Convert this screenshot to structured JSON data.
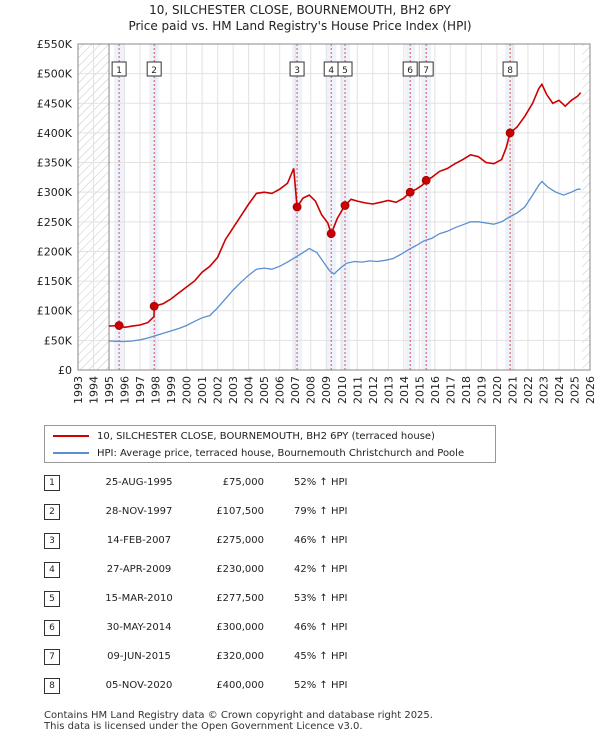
{
  "chart_data": {
    "type": "line",
    "title": "10, SILCHESTER CLOSE, BOURNEMOUTH, BH2 6PY",
    "subtitle": "Price paid vs. HM Land Registry's House Price Index (HPI)",
    "xlim": [
      1993,
      2026
    ],
    "ylim": [
      0,
      550000
    ],
    "x_ticks": [
      1993,
      1994,
      1995,
      1996,
      1997,
      1998,
      1999,
      2000,
      2001,
      2002,
      2003,
      2004,
      2005,
      2006,
      2007,
      2008,
      2009,
      2010,
      2011,
      2012,
      2013,
      2014,
      2015,
      2016,
      2017,
      2018,
      2019,
      2020,
      2021,
      2022,
      2023,
      2024,
      2025,
      2026
    ],
    "y_ticks": [
      {
        "value": 0,
        "label": "£0"
      },
      {
        "value": 50000,
        "label": "£50K"
      },
      {
        "value": 100000,
        "label": "£100K"
      },
      {
        "value": 150000,
        "label": "£150K"
      },
      {
        "value": 200000,
        "label": "£200K"
      },
      {
        "value": 250000,
        "label": "£250K"
      },
      {
        "value": 300000,
        "label": "£300K"
      },
      {
        "value": 350000,
        "label": "£350K"
      },
      {
        "value": 400000,
        "label": "£400K"
      },
      {
        "value": 450000,
        "label": "£450K"
      },
      {
        "value": 500000,
        "label": "£500K"
      },
      {
        "value": 550000,
        "label": "£550K"
      }
    ],
    "hatched_ranges": [
      [
        1993,
        1995.0
      ],
      [
        2025.5,
        2026
      ]
    ],
    "series": [
      {
        "name": "10, SILCHESTER CLOSE, BOURNEMOUTH, BH2 6PY (terraced house)",
        "color": "#cc0000",
        "points": [
          [
            1995.0,
            74000
          ],
          [
            1995.65,
            75000
          ],
          [
            1996.0,
            72000
          ],
          [
            1996.5,
            74000
          ],
          [
            1997.0,
            76000
          ],
          [
            1997.5,
            80000
          ],
          [
            1997.9,
            90000
          ],
          [
            1997.91,
            107500
          ],
          [
            1998.5,
            112000
          ],
          [
            1999.0,
            120000
          ],
          [
            1999.5,
            130000
          ],
          [
            2000.0,
            140000
          ],
          [
            2000.5,
            150000
          ],
          [
            2001.0,
            165000
          ],
          [
            2001.5,
            175000
          ],
          [
            2002.0,
            190000
          ],
          [
            2002.5,
            220000
          ],
          [
            2003.0,
            240000
          ],
          [
            2003.5,
            260000
          ],
          [
            2004.0,
            280000
          ],
          [
            2004.5,
            298000
          ],
          [
            2005.0,
            300000
          ],
          [
            2005.5,
            298000
          ],
          [
            2006.0,
            305000
          ],
          [
            2006.5,
            315000
          ],
          [
            2006.9,
            340000
          ],
          [
            2007.12,
            275000
          ],
          [
            2007.5,
            290000
          ],
          [
            2007.9,
            295000
          ],
          [
            2008.3,
            285000
          ],
          [
            2008.7,
            262000
          ],
          [
            2009.1,
            248000
          ],
          [
            2009.32,
            230000
          ],
          [
            2009.7,
            255000
          ],
          [
            2010.2,
            278000
          ],
          [
            2010.21,
            277500
          ],
          [
            2010.6,
            288000
          ],
          [
            2011.0,
            285000
          ],
          [
            2011.5,
            282000
          ],
          [
            2012.0,
            280000
          ],
          [
            2012.5,
            283000
          ],
          [
            2013.0,
            286000
          ],
          [
            2013.5,
            283000
          ],
          [
            2014.0,
            290000
          ],
          [
            2014.41,
            300000
          ],
          [
            2014.8,
            305000
          ],
          [
            2015.2,
            312000
          ],
          [
            2015.44,
            320000
          ],
          [
            2015.8,
            325000
          ],
          [
            2016.3,
            335000
          ],
          [
            2016.8,
            340000
          ],
          [
            2017.3,
            348000
          ],
          [
            2017.8,
            355000
          ],
          [
            2018.3,
            363000
          ],
          [
            2018.8,
            360000
          ],
          [
            2019.3,
            350000
          ],
          [
            2019.8,
            348000
          ],
          [
            2020.3,
            355000
          ],
          [
            2020.6,
            375000
          ],
          [
            2020.85,
            400000
          ],
          [
            2021.3,
            410000
          ],
          [
            2021.8,
            428000
          ],
          [
            2022.3,
            450000
          ],
          [
            2022.7,
            475000
          ],
          [
            2022.9,
            482000
          ],
          [
            2023.2,
            465000
          ],
          [
            2023.6,
            450000
          ],
          [
            2024.0,
            455000
          ],
          [
            2024.4,
            445000
          ],
          [
            2024.8,
            455000
          ],
          [
            2025.2,
            462000
          ],
          [
            2025.4,
            468000
          ]
        ]
      },
      {
        "name": "HPI: Average price, terraced house, Bournemouth Christchurch and Poole",
        "color": "#5b8fd0",
        "points": [
          [
            1995.0,
            49000
          ],
          [
            1995.5,
            48500
          ],
          [
            1996.0,
            48000
          ],
          [
            1996.5,
            49000
          ],
          [
            1997.0,
            51000
          ],
          [
            1997.5,
            54000
          ],
          [
            1998.0,
            58000
          ],
          [
            1998.5,
            62000
          ],
          [
            1999.0,
            66000
          ],
          [
            1999.5,
            70000
          ],
          [
            2000.0,
            75000
          ],
          [
            2000.5,
            82000
          ],
          [
            2001.0,
            88000
          ],
          [
            2001.5,
            92000
          ],
          [
            2002.0,
            105000
          ],
          [
            2002.5,
            120000
          ],
          [
            2003.0,
            135000
          ],
          [
            2003.5,
            148000
          ],
          [
            2004.0,
            160000
          ],
          [
            2004.5,
            170000
          ],
          [
            2005.0,
            172000
          ],
          [
            2005.5,
            170000
          ],
          [
            2006.0,
            175000
          ],
          [
            2006.5,
            182000
          ],
          [
            2007.0,
            190000
          ],
          [
            2007.5,
            198000
          ],
          [
            2007.9,
            205000
          ],
          [
            2008.4,
            198000
          ],
          [
            2008.8,
            183000
          ],
          [
            2009.2,
            168000
          ],
          [
            2009.5,
            162000
          ],
          [
            2009.9,
            172000
          ],
          [
            2010.3,
            180000
          ],
          [
            2010.8,
            183000
          ],
          [
            2011.3,
            182000
          ],
          [
            2011.8,
            184000
          ],
          [
            2012.3,
            183000
          ],
          [
            2012.8,
            185000
          ],
          [
            2013.3,
            188000
          ],
          [
            2013.8,
            195000
          ],
          [
            2014.3,
            203000
          ],
          [
            2014.8,
            210000
          ],
          [
            2015.3,
            218000
          ],
          [
            2015.8,
            222000
          ],
          [
            2016.3,
            230000
          ],
          [
            2016.8,
            234000
          ],
          [
            2017.3,
            240000
          ],
          [
            2017.8,
            245000
          ],
          [
            2018.3,
            250000
          ],
          [
            2018.8,
            250000
          ],
          [
            2019.3,
            248000
          ],
          [
            2019.8,
            246000
          ],
          [
            2020.3,
            250000
          ],
          [
            2020.8,
            258000
          ],
          [
            2021.3,
            265000
          ],
          [
            2021.8,
            275000
          ],
          [
            2022.3,
            295000
          ],
          [
            2022.7,
            312000
          ],
          [
            2022.9,
            318000
          ],
          [
            2023.3,
            308000
          ],
          [
            2023.8,
            300000
          ],
          [
            2024.3,
            295000
          ],
          [
            2024.8,
            300000
          ],
          [
            2025.2,
            305000
          ],
          [
            2025.4,
            305000
          ]
        ]
      }
    ],
    "sales": [
      {
        "id": "1",
        "x": 1995.65,
        "price": 75000
      },
      {
        "id": "2",
        "x": 1997.91,
        "price": 107500
      },
      {
        "id": "3",
        "x": 2007.12,
        "price": 275000
      },
      {
        "id": "4",
        "x": 2009.32,
        "price": 230000
      },
      {
        "id": "5",
        "x": 2010.21,
        "price": 277500
      },
      {
        "id": "6",
        "x": 2014.41,
        "price": 300000
      },
      {
        "id": "7",
        "x": 2015.44,
        "price": 320000
      },
      {
        "id": "8",
        "x": 2020.85,
        "price": 400000
      }
    ]
  },
  "legend": {
    "property_label": "10, SILCHESTER CLOSE, BOURNEMOUTH, BH2 6PY (terraced house)",
    "hpi_label": "HPI: Average price, terraced house, Bournemouth Christchurch and Poole"
  },
  "table": [
    {
      "num": "1",
      "date": "25-AUG-1995",
      "price": "£75,000",
      "hpi": "52% ↑ HPI"
    },
    {
      "num": "2",
      "date": "28-NOV-1997",
      "price": "£107,500",
      "hpi": "79% ↑ HPI"
    },
    {
      "num": "3",
      "date": "14-FEB-2007",
      "price": "£275,000",
      "hpi": "46% ↑ HPI"
    },
    {
      "num": "4",
      "date": "27-APR-2009",
      "price": "£230,000",
      "hpi": "42% ↑ HPI"
    },
    {
      "num": "5",
      "date": "15-MAR-2010",
      "price": "£277,500",
      "hpi": "53% ↑ HPI"
    },
    {
      "num": "6",
      "date": "30-MAY-2014",
      "price": "£300,000",
      "hpi": "46% ↑ HPI"
    },
    {
      "num": "7",
      "date": "09-JUN-2015",
      "price": "£320,000",
      "hpi": "45% ↑ HPI"
    },
    {
      "num": "8",
      "date": "05-NOV-2020",
      "price": "£400,000",
      "hpi": "52% ↑ HPI"
    }
  ],
  "footer": {
    "line1": "Contains HM Land Registry data © Crown copyright and database right 2025.",
    "line2": "This data is licensed under the Open Government Licence v3.0."
  }
}
